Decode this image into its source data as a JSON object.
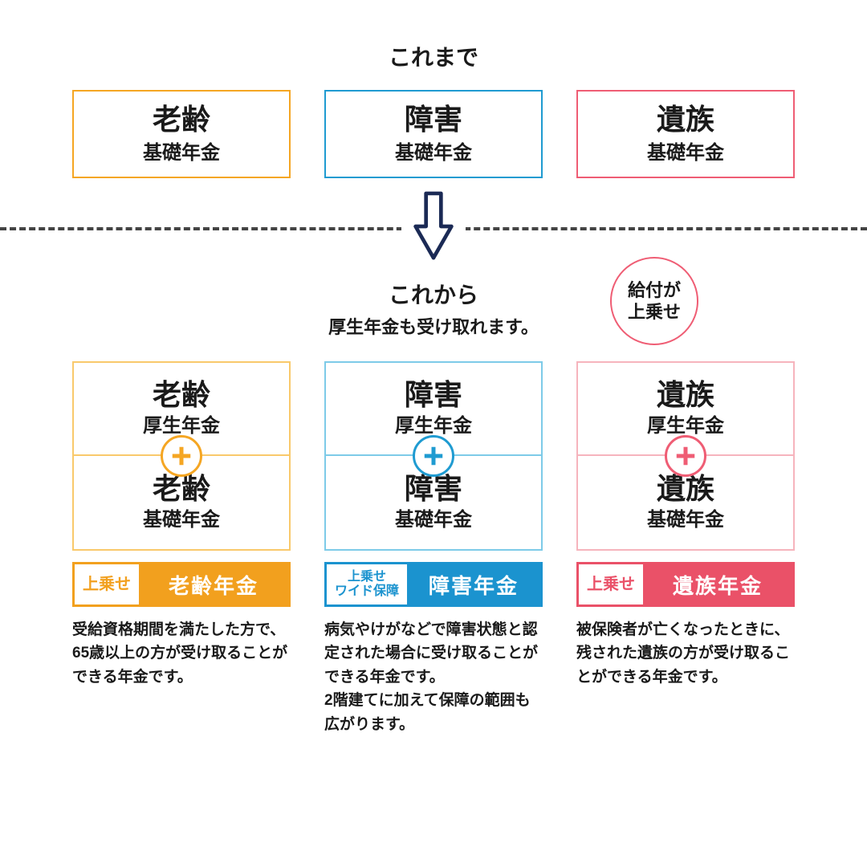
{
  "colors": {
    "orange": "#f5a623",
    "orange_light": "#f9c96b",
    "orange_solid": "#f2a01e",
    "orange_tag_text": "#f2a01e",
    "blue": "#1f9bd1",
    "blue_light": "#7ecbe8",
    "blue_solid": "#1b93cf",
    "pink": "#ef5d74",
    "pink_light": "#f6b4bd",
    "pink_solid": "#ea5168",
    "arrow": "#1b2a55",
    "text": "#1a1a1a"
  },
  "top_label": "これまで",
  "top_boxes": [
    {
      "title": "老齢",
      "sub": "基礎年金",
      "border": "#f5a623"
    },
    {
      "title": "障害",
      "sub": "基礎年金",
      "border": "#1f9bd1"
    },
    {
      "title": "遺族",
      "sub": "基礎年金",
      "border": "#ef5d74"
    }
  ],
  "mid": {
    "label": "これから",
    "sub": "厚生年金も受け取れます。",
    "badge": "給付が\n上乗せ",
    "badge_border": "#ef5d74"
  },
  "columns": [
    {
      "key": "old-age",
      "top": {
        "title": "老齢",
        "sub": "厚生年金"
      },
      "bottom": {
        "title": "老齢",
        "sub": "基礎年金"
      },
      "border_light": "#f9c96b",
      "plus_border": "#f5a623",
      "plus_fill": "#f5a623",
      "tag": {
        "left": "上乗せ",
        "left_fontsize": 20,
        "right": "老齢年金",
        "bg": "#f2a01e",
        "border": "#f2a01e",
        "left_color": "#f2a01e"
      },
      "desc": "受給資格期間を満たした方で、65歳以上の方が受け取ることができる年金です。"
    },
    {
      "key": "disability",
      "top": {
        "title": "障害",
        "sub": "厚生年金"
      },
      "bottom": {
        "title": "障害",
        "sub": "基礎年金"
      },
      "border_light": "#7ecbe8",
      "plus_border": "#1f9bd1",
      "plus_fill": "#1f9bd1",
      "tag": {
        "left": "上乗せ\nワイド保障",
        "left_fontsize": 16,
        "right": "障害年金",
        "bg": "#1b93cf",
        "border": "#1b93cf",
        "left_color": "#1b93cf"
      },
      "desc": "病気やけがなどで障害状態と認定された場合に受け取ることができる年金です。\n2階建てに加えて保障の範囲も広がります。"
    },
    {
      "key": "survivor",
      "top": {
        "title": "遺族",
        "sub": "厚生年金"
      },
      "bottom": {
        "title": "遺族",
        "sub": "基礎年金"
      },
      "border_light": "#f6b4bd",
      "plus_border": "#ef5d74",
      "plus_fill": "#ef5d74",
      "tag": {
        "left": "上乗せ",
        "left_fontsize": 20,
        "right": "遺族年金",
        "bg": "#ea5168",
        "border": "#ea5168",
        "left_color": "#ea5168"
      },
      "desc": "被保険者が亡くなったときに、残された遺族の方が受け取ることができる年金です。"
    }
  ]
}
